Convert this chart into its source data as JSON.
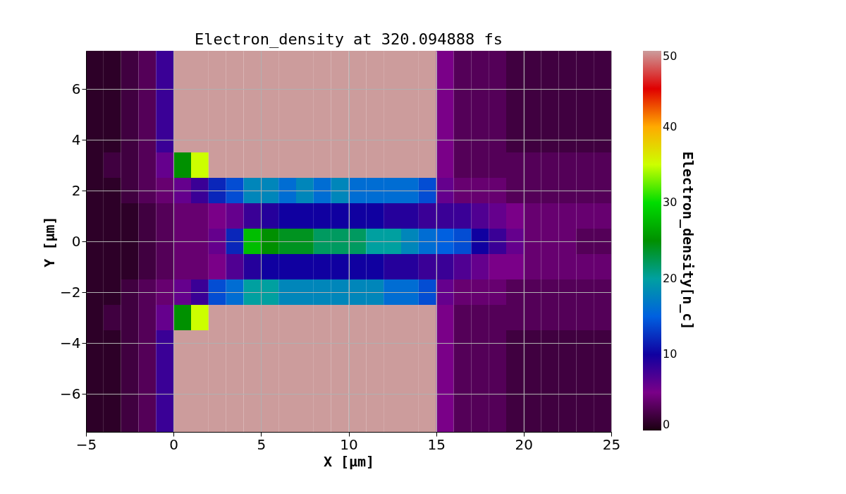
{
  "chart_data": {
    "type": "heatmap",
    "title": "Electron_density at 320.094888 fs",
    "xlabel": "X [μm]",
    "ylabel": "Y [μm]",
    "clabel": "Electron_density[n_c]",
    "x": [
      -4.5,
      -3.5,
      -2.5,
      -1.5,
      -0.5,
      0.5,
      1.5,
      2.5,
      3.5,
      4.5,
      5.5,
      6.5,
      7.5,
      8.5,
      9.5,
      10.5,
      11.5,
      12.5,
      13.5,
      14.5,
      15.5,
      16.5,
      17.5,
      18.5,
      19.5,
      20.5,
      21.5,
      22.5,
      23.5,
      24.5
    ],
    "y": [
      7,
      6,
      5,
      4,
      3,
      2,
      1,
      0,
      -1,
      -2,
      -3,
      -4,
      -5,
      -6,
      -7
    ],
    "cells": [
      [
        1,
        1,
        2,
        3,
        8,
        50,
        50,
        50,
        50,
        50,
        50,
        50,
        50,
        50,
        50,
        50,
        50,
        50,
        50,
        50,
        5,
        3,
        3,
        3,
        2,
        2,
        2,
        2,
        2,
        2
      ],
      [
        1,
        1,
        2,
        3,
        8,
        50,
        50,
        50,
        50,
        50,
        50,
        50,
        50,
        50,
        50,
        50,
        50,
        50,
        50,
        50,
        5,
        3,
        3,
        3,
        2,
        2,
        2,
        2,
        2,
        2
      ],
      [
        1,
        1,
        2,
        3,
        8,
        50,
        50,
        50,
        50,
        50,
        50,
        50,
        50,
        50,
        50,
        50,
        50,
        50,
        50,
        50,
        5,
        3,
        3,
        3,
        2,
        2,
        2,
        2,
        2,
        2
      ],
      [
        1,
        1,
        2,
        3,
        8,
        50,
        50,
        50,
        50,
        50,
        50,
        50,
        50,
        50,
        50,
        50,
        50,
        50,
        50,
        50,
        5,
        3,
        3,
        3,
        2,
        2,
        2,
        2,
        2,
        2
      ],
      [
        1,
        2,
        2,
        3,
        6,
        25,
        35,
        50,
        50,
        50,
        50,
        50,
        50,
        50,
        50,
        50,
        50,
        50,
        50,
        50,
        5,
        3,
        3,
        3,
        3,
        3,
        3,
        3,
        3,
        3
      ],
      [
        1,
        1,
        2,
        3,
        4,
        6,
        8,
        12,
        14,
        18,
        18,
        16,
        18,
        16,
        18,
        16,
        16,
        16,
        16,
        14,
        6,
        4,
        4,
        4,
        3,
        3,
        3,
        3,
        3,
        3
      ],
      [
        1,
        1,
        1,
        2,
        3,
        4,
        4,
        5,
        6,
        8,
        9,
        10,
        10,
        10,
        10,
        10,
        10,
        9,
        9,
        8,
        8,
        8,
        7,
        6,
        5,
        4,
        4,
        4,
        4,
        4
      ],
      [
        1,
        1,
        1,
        2,
        3,
        4,
        4,
        6,
        12,
        28,
        25,
        24,
        24,
        22,
        22,
        22,
        20,
        20,
        18,
        16,
        15,
        14,
        10,
        8,
        6,
        4,
        4,
        4,
        3,
        3
      ],
      [
        1,
        1,
        1,
        2,
        3,
        4,
        4,
        5,
        7,
        9,
        10,
        10,
        10,
        10,
        10,
        10,
        10,
        9,
        9,
        8,
        8,
        7,
        6,
        5,
        5,
        4,
        4,
        4,
        4,
        4
      ],
      [
        1,
        1,
        2,
        3,
        4,
        6,
        8,
        14,
        16,
        20,
        20,
        18,
        18,
        18,
        18,
        18,
        18,
        16,
        16,
        14,
        6,
        4,
        4,
        4,
        3,
        3,
        3,
        3,
        3,
        3
      ],
      [
        1,
        2,
        2,
        3,
        6,
        25,
        35,
        50,
        50,
        50,
        50,
        50,
        50,
        50,
        50,
        50,
        50,
        50,
        50,
        50,
        5,
        3,
        3,
        3,
        3,
        3,
        3,
        3,
        3,
        3
      ],
      [
        1,
        1,
        2,
        3,
        8,
        50,
        50,
        50,
        50,
        50,
        50,
        50,
        50,
        50,
        50,
        50,
        50,
        50,
        50,
        50,
        5,
        3,
        3,
        3,
        2,
        2,
        2,
        2,
        2,
        2
      ],
      [
        1,
        1,
        2,
        3,
        8,
        50,
        50,
        50,
        50,
        50,
        50,
        50,
        50,
        50,
        50,
        50,
        50,
        50,
        50,
        50,
        5,
        3,
        3,
        3,
        2,
        2,
        2,
        2,
        2,
        2
      ],
      [
        1,
        1,
        2,
        3,
        8,
        50,
        50,
        50,
        50,
        50,
        50,
        50,
        50,
        50,
        50,
        50,
        50,
        50,
        50,
        50,
        5,
        3,
        3,
        3,
        2,
        2,
        2,
        2,
        2,
        2
      ],
      [
        1,
        1,
        2,
        3,
        8,
        50,
        50,
        50,
        50,
        50,
        50,
        50,
        50,
        50,
        50,
        50,
        50,
        50,
        50,
        50,
        5,
        3,
        3,
        3,
        2,
        2,
        2,
        2,
        2,
        2
      ]
    ],
    "xlim": [
      -5,
      25
    ],
    "xticks": [
      -5,
      0,
      5,
      10,
      15,
      20,
      25
    ],
    "ylim": [
      -7.5,
      7.5
    ],
    "yticks": [
      -6,
      -4,
      -2,
      0,
      2,
      4,
      6
    ],
    "clim": [
      0,
      50
    ],
    "cticks": [
      0,
      10,
      20,
      30,
      40,
      50
    ],
    "grid": true
  }
}
